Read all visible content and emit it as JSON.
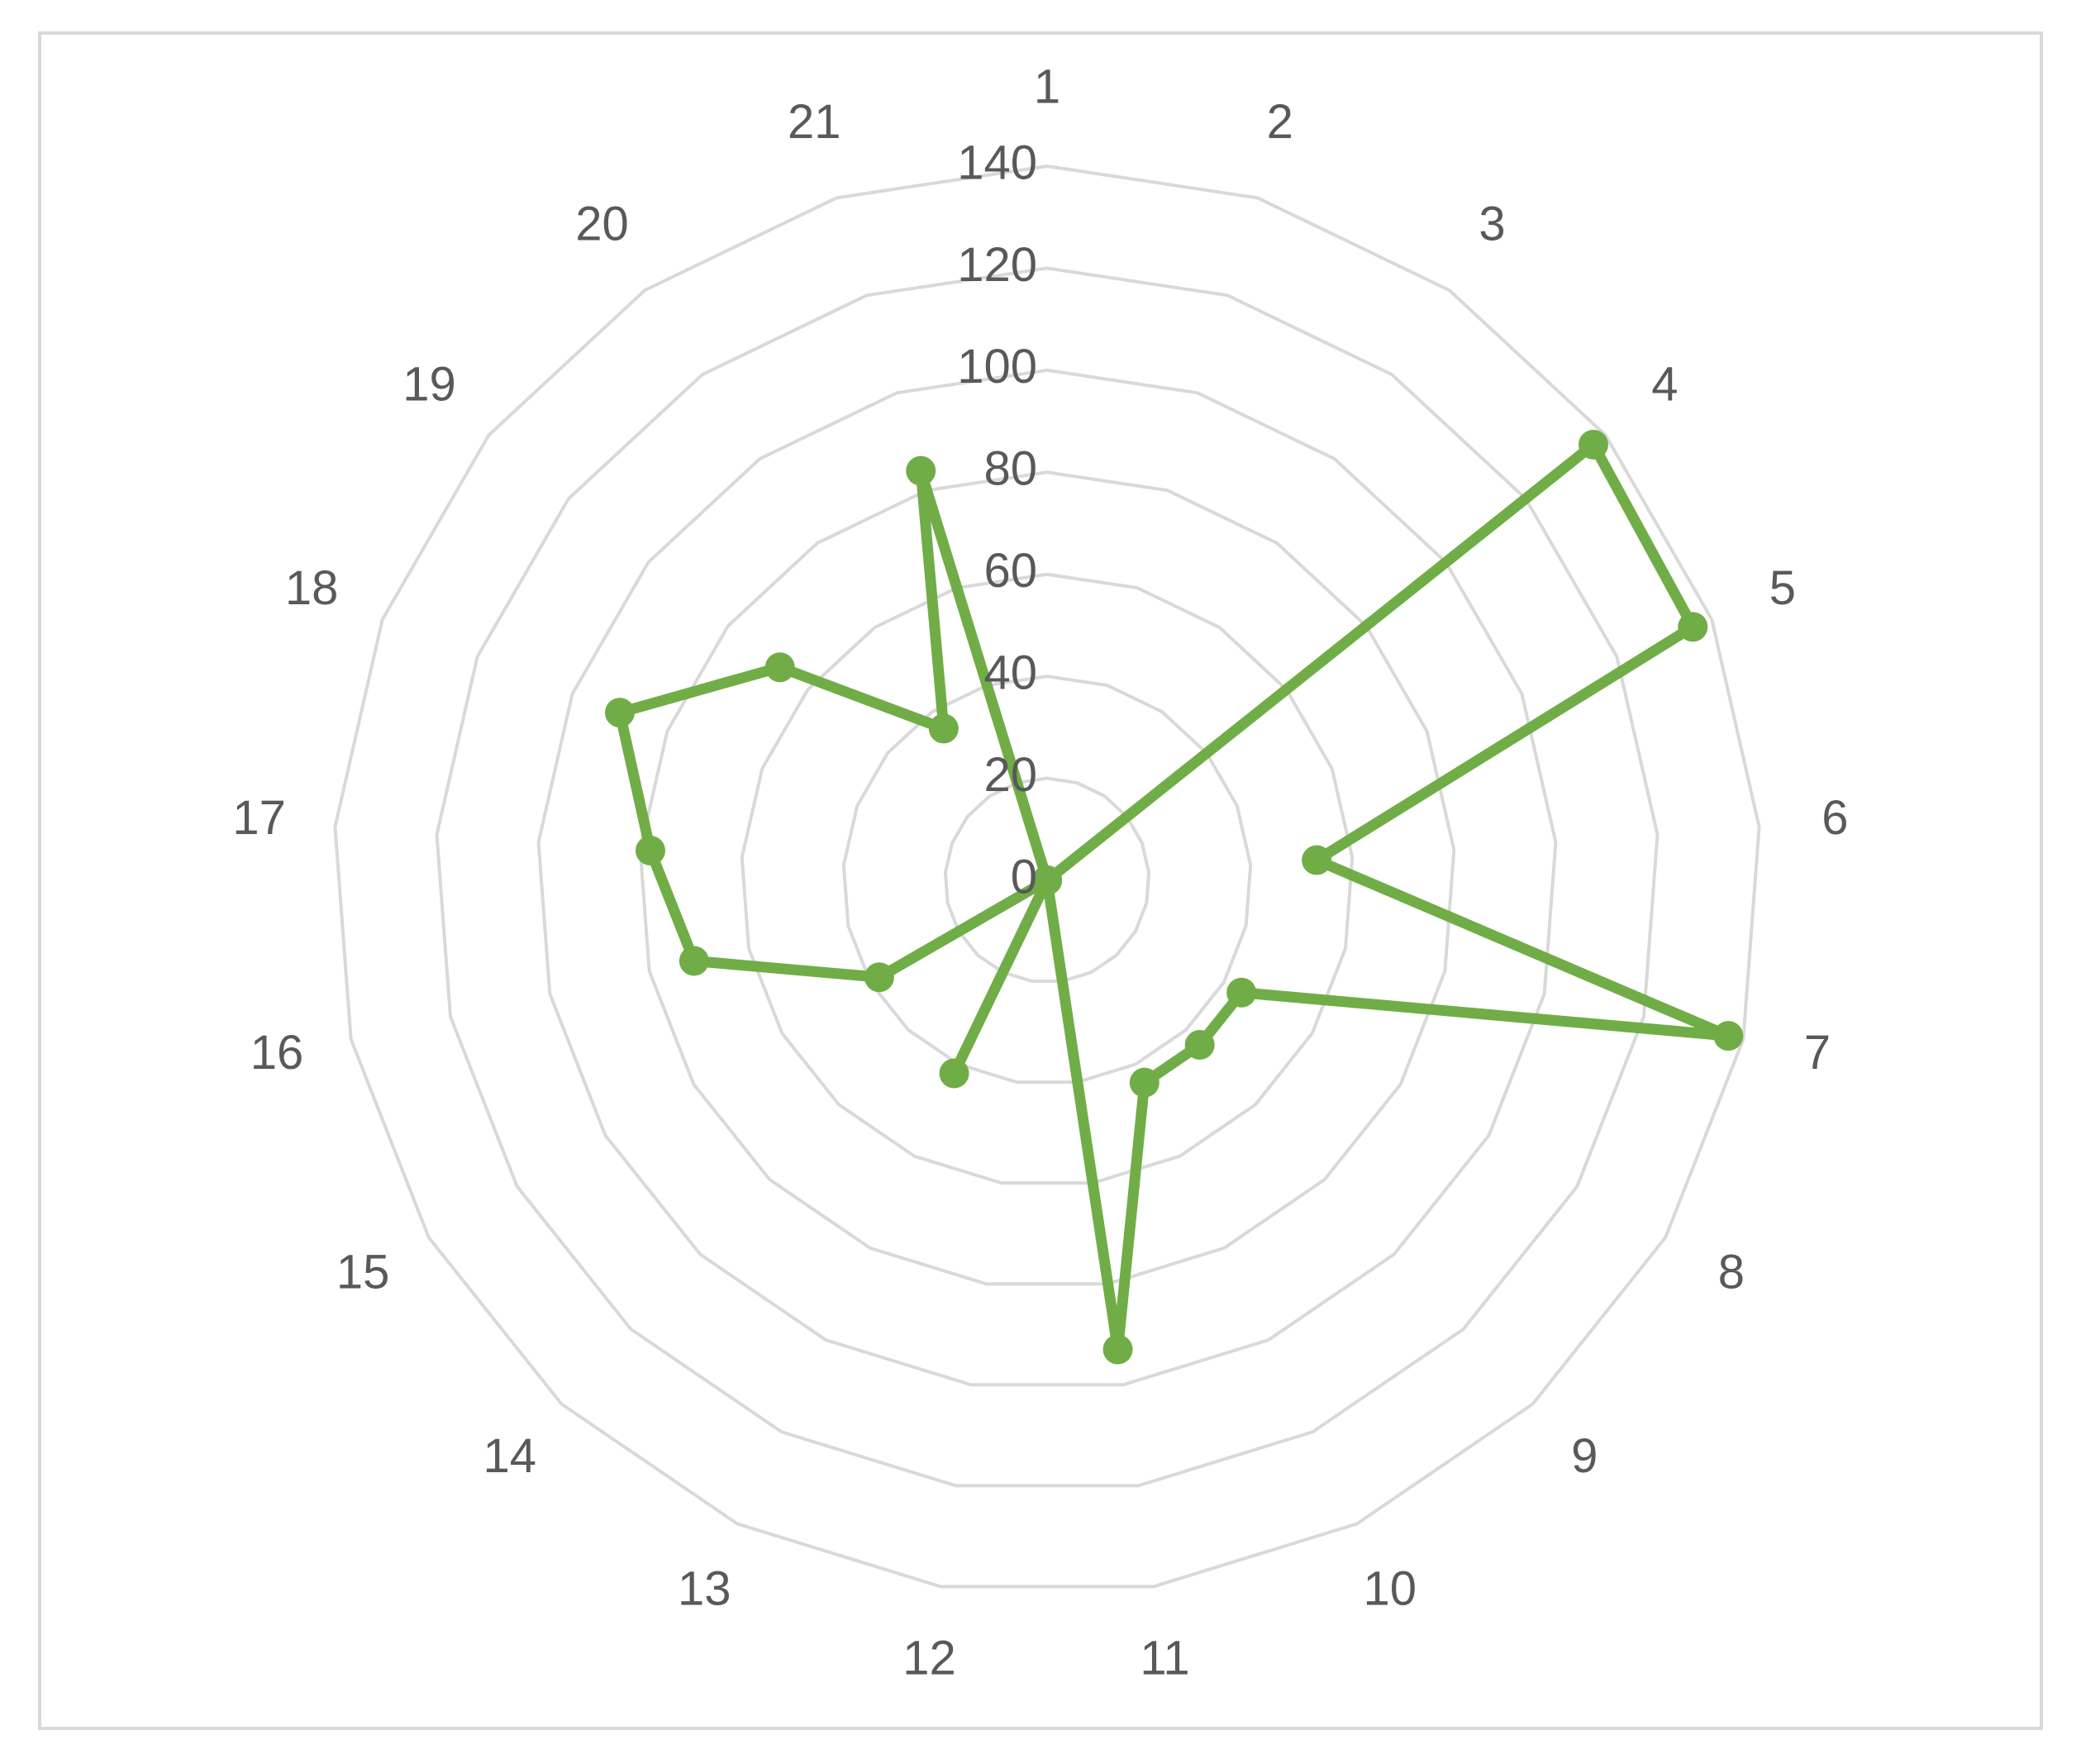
{
  "chart_data": {
    "type": "radar",
    "categories": [
      "1",
      "2",
      "3",
      "4",
      "5",
      "6",
      "7",
      "8",
      "9",
      "10",
      "11",
      "12",
      "13",
      "14",
      "15",
      "16",
      "17",
      "18",
      "19",
      "20",
      "21"
    ],
    "values": [
      0,
      0,
      0,
      137,
      136,
      53,
      137,
      44,
      44,
      44,
      93,
      0,
      42,
      0,
      38,
      71,
      78,
      90,
      67,
      36,
      84
    ],
    "color": "#70ad47",
    "ylim": [
      0,
      140
    ],
    "yticks": [
      0,
      20,
      40,
      60,
      80,
      100,
      120,
      140
    ],
    "grid": true
  }
}
